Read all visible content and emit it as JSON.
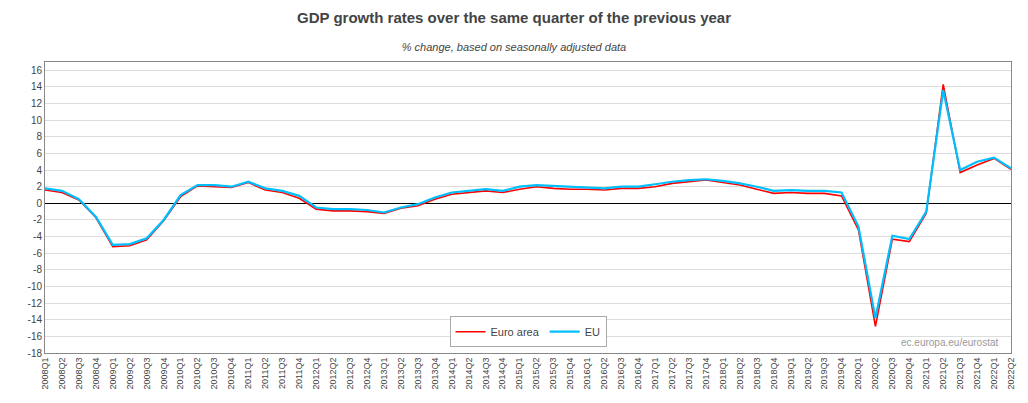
{
  "chart_data": {
    "type": "line",
    "title": "GDP growth rates over the same quarter of the previous year",
    "subtitle": "% change, based on seasonally adjusted data",
    "annotations": [
      "ec.europa.eu/eurostat"
    ],
    "categories": [
      "2008Q1",
      "2008Q2",
      "2008Q3",
      "2008Q4",
      "2009Q1",
      "2009Q2",
      "2009Q3",
      "2009Q4",
      "2010Q1",
      "2010Q2",
      "2010Q3",
      "2010Q4",
      "2011Q1",
      "2011Q2",
      "2011Q3",
      "2011Q4",
      "2012Q1",
      "2012Q2",
      "2012Q3",
      "2012Q4",
      "2013Q1",
      "2013Q2",
      "2013Q3",
      "2013Q4",
      "2014Q1",
      "2014Q2",
      "2014Q3",
      "2014Q4",
      "2015Q1",
      "2015Q2",
      "2015Q3",
      "2015Q4",
      "2016Q1",
      "2016Q2",
      "2016Q3",
      "2016Q4",
      "2017Q1",
      "2017Q2",
      "2017Q3",
      "2017Q4",
      "2018Q1",
      "2018Q2",
      "2018Q3",
      "2018Q4",
      "2019Q1",
      "2019Q2",
      "2019Q3",
      "2019Q4",
      "2020Q1",
      "2020Q2",
      "2020Q3",
      "2020Q4",
      "2021Q1",
      "2021Q2",
      "2021Q3",
      "2021Q4",
      "2022Q1",
      "2022Q2"
    ],
    "series": [
      {
        "name": "Euro area",
        "color": "#FF0000",
        "values": [
          1.6,
          1.3,
          0.4,
          -1.7,
          -5.2,
          -5.1,
          -4.4,
          -2.1,
          0.8,
          2.1,
          2.0,
          1.9,
          2.5,
          1.6,
          1.3,
          0.6,
          -0.7,
          -0.9,
          -0.9,
          -1.0,
          -1.2,
          -0.6,
          -0.3,
          0.5,
          1.1,
          1.3,
          1.5,
          1.3,
          1.7,
          2.0,
          1.8,
          1.7,
          1.7,
          1.6,
          1.8,
          1.8,
          2.0,
          2.4,
          2.6,
          2.8,
          2.5,
          2.2,
          1.7,
          1.2,
          1.3,
          1.2,
          1.2,
          0.9,
          -3.2,
          -14.8,
          -4.3,
          -4.6,
          -1.2,
          14.3,
          3.7,
          4.6,
          5.4,
          4.1
        ]
      },
      {
        "name": "EU",
        "color": "#00BFFF",
        "values": [
          1.8,
          1.5,
          0.5,
          -1.6,
          -5.0,
          -4.9,
          -4.2,
          -2.0,
          1.0,
          2.2,
          2.2,
          2.0,
          2.6,
          1.8,
          1.5,
          0.9,
          -0.5,
          -0.7,
          -0.7,
          -0.8,
          -1.1,
          -0.5,
          -0.1,
          0.7,
          1.3,
          1.5,
          1.7,
          1.5,
          2.0,
          2.2,
          2.1,
          2.0,
          1.9,
          1.8,
          2.0,
          2.0,
          2.3,
          2.6,
          2.8,
          2.9,
          2.7,
          2.4,
          2.0,
          1.5,
          1.6,
          1.5,
          1.5,
          1.3,
          -2.8,
          -13.8,
          -3.9,
          -4.3,
          -1.0,
          13.6,
          4.0,
          5.0,
          5.5,
          4.2
        ]
      }
    ],
    "ylim": [
      -18,
      17
    ],
    "yticks": [
      -18,
      -16,
      -14,
      -12,
      -10,
      -8,
      -6,
      -4,
      -2,
      0,
      2,
      4,
      6,
      8,
      10,
      12,
      14,
      16
    ],
    "grid": true,
    "legend": "lower center"
  }
}
